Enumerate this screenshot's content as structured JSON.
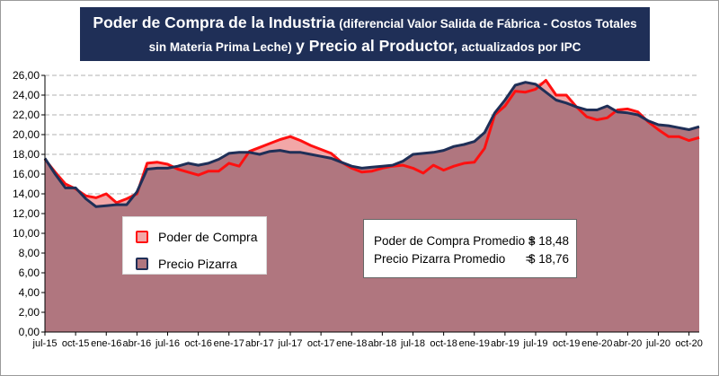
{
  "title": {
    "part1": "Poder de Compra de la Industria",
    "part2": "(diferencial Valor Salida de Fábrica - Costos Totales",
    "part3": "sin Materia Prima Leche)",
    "part4": "y Precio al Productor,",
    "part5": "actualizados por IPC"
  },
  "legend": {
    "item1": "Poder de Compra",
    "item2": "Precio Pizarra"
  },
  "averages": {
    "row1_label": "Poder de Compra Promedio =",
    "row1_value": "$ 18,48",
    "row2_label": "Precio Pizarra Promedio      =",
    "row2_value": "$ 18,76"
  },
  "colors": {
    "title_bg": "#1f2f57",
    "poder_line": "#ff1010",
    "pizarra_line": "#1f2f57",
    "area_fill": "#b0767f",
    "area_red_fill": "#f2a7a7",
    "grid": "#b0b0b0"
  },
  "chart_data": {
    "type": "area",
    "x_tick_labels": [
      "jul-15",
      "oct-15",
      "ene-16",
      "abr-16",
      "jul-16",
      "oct-16",
      "ene-17",
      "abr-17",
      "jul-17",
      "oct-17",
      "ene-18",
      "abr-18",
      "jul-18",
      "oct-18",
      "ene-19",
      "abr-19",
      "jul-19",
      "oct-19",
      "ene-20",
      "abr-20",
      "jul-20",
      "oct-20"
    ],
    "y_ticks": [
      "0,00",
      "2,00",
      "4,00",
      "6,00",
      "8,00",
      "10,00",
      "12,00",
      "14,00",
      "16,00",
      "18,00",
      "20,00",
      "22,00",
      "24,00",
      "26,00"
    ],
    "ylim": [
      0,
      26
    ],
    "grid": true,
    "series": [
      {
        "name": "Poder de Compra",
        "values": [
          17.5,
          16.2,
          15.0,
          14.5,
          13.8,
          13.6,
          14.0,
          13.1,
          13.5,
          14.0,
          17.1,
          17.2,
          17.0,
          16.5,
          16.2,
          15.9,
          16.3,
          16.3,
          17.1,
          16.8,
          18.3,
          18.7,
          19.1,
          19.5,
          19.8,
          19.4,
          18.9,
          18.5,
          18.1,
          17.2,
          16.6,
          16.2,
          16.3,
          16.6,
          16.8,
          16.9,
          16.6,
          16.1,
          16.9,
          16.4,
          16.8,
          17.1,
          17.2,
          18.6,
          22.0,
          22.9,
          24.4,
          24.3,
          24.6,
          25.5,
          24.0,
          24.0,
          22.8,
          21.8,
          21.5,
          21.7,
          22.5,
          22.6,
          22.3,
          21.3,
          20.5,
          19.8,
          19.8,
          19.4,
          19.7
        ]
      },
      {
        "name": "Precio Pizarra",
        "values": [
          17.6,
          16.0,
          14.6,
          14.6,
          13.5,
          12.7,
          12.8,
          12.9,
          12.9,
          14.2,
          16.5,
          16.6,
          16.6,
          16.8,
          17.1,
          16.9,
          17.1,
          17.5,
          18.1,
          18.2,
          18.2,
          18.0,
          18.3,
          18.4,
          18.2,
          18.2,
          18.0,
          17.8,
          17.6,
          17.2,
          16.8,
          16.6,
          16.7,
          16.8,
          16.9,
          17.3,
          18.0,
          18.1,
          18.2,
          18.4,
          18.8,
          19.0,
          19.3,
          20.2,
          22.2,
          23.5,
          25.0,
          25.3,
          25.1,
          24.3,
          23.5,
          23.2,
          22.8,
          22.5,
          22.5,
          22.9,
          22.3,
          22.2,
          22.0,
          21.4,
          21.0,
          20.9,
          20.7,
          20.5,
          20.8
        ]
      }
    ]
  }
}
